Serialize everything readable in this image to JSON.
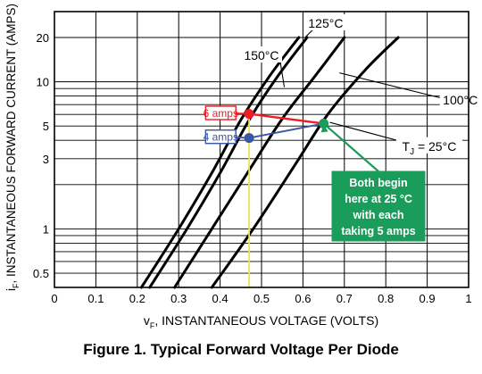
{
  "chart_data": {
    "type": "line",
    "title": "Figure 1. Typical Forward Voltage Per Diode",
    "ylabel": {
      "symbol": "i",
      "sub": "F",
      "text": ", INSTANTANEOUS FORWARD CURRENT (AMPS)"
    },
    "xlabel": {
      "symbol": "v",
      "sub": "F",
      "text": ", INSTANTANEOUS VOLTAGE (VOLTS)"
    },
    "xlim": [
      0,
      1.0
    ],
    "ylim": [
      0.4,
      30
    ],
    "yscale": "log",
    "grid": true,
    "xticks": [
      0,
      0.1,
      0.2,
      0.3,
      0.4,
      0.5,
      0.6,
      0.7,
      0.8,
      0.9,
      1
    ],
    "xtick_labels": [
      "0",
      "0.1",
      "0.2",
      "0.3",
      "0.4",
      "0.5",
      "0.6",
      "0.7",
      "0.8",
      "0.9",
      "1"
    ],
    "yticks": [
      0.5,
      1,
      3,
      5,
      10,
      20
    ],
    "ytick_labels": [
      "0.5",
      "1",
      "3",
      "5",
      "10",
      "20"
    ],
    "series": [
      {
        "name": "150°C",
        "x": [
          0.21,
          0.3,
          0.38,
          0.45,
          0.52,
          0.59
        ],
        "y": [
          0.4,
          1,
          2.4,
          5.5,
          11,
          20
        ]
      },
      {
        "name": "125°C",
        "x": [
          0.23,
          0.32,
          0.4,
          0.47,
          0.54,
          0.61
        ],
        "y": [
          0.4,
          1,
          2.4,
          5.5,
          11,
          20
        ]
      },
      {
        "name": "100°C",
        "x": [
          0.29,
          0.38,
          0.47,
          0.55,
          0.63,
          0.7
        ],
        "y": [
          0.4,
          1,
          2.5,
          5.6,
          11,
          20
        ]
      },
      {
        "name": "T_J = 25°C",
        "x": [
          0.38,
          0.48,
          0.58,
          0.66,
          0.75,
          0.83
        ],
        "y": [
          0.4,
          1,
          2.7,
          6,
          12,
          20
        ]
      }
    ],
    "curve_labels": [
      {
        "text": "125°C",
        "x": 0.655,
        "y": 24,
        "anchor_x": 0.605,
        "anchor_y": 20
      },
      {
        "text": "150°C",
        "x": 0.5,
        "y": 14.5,
        "anchor_x": 0.555,
        "anchor_y": 9.2
      },
      {
        "text": "100°C",
        "x": 0.98,
        "y": 7.2,
        "anchor_x": 0.688,
        "anchor_y": 11.5
      },
      {
        "text": "T",
        "sub": "J",
        "rest": " = 25°C",
        "x": 0.905,
        "y": 3.5,
        "anchor_x": 0.665,
        "anchor_y": 5.3
      }
    ],
    "annotations": [
      {
        "text": "6 amps",
        "box_x": [
          0.365,
          0.438
        ],
        "box_y": 6.1,
        "point_x": 0.47,
        "point_y": 6.05,
        "color": "#ee1c24"
      },
      {
        "text": "4 amps",
        "box_x": [
          0.365,
          0.438
        ],
        "box_y": 4.2,
        "point_x": 0.47,
        "point_y": 4.15,
        "color": "#3a56a5"
      },
      {
        "text": "",
        "point_x": 0.65,
        "point_y": 5.2,
        "color": "#1a9c5b"
      }
    ],
    "callout": {
      "lines": [
        "Both begin",
        "here at 25 °C",
        "with each",
        "taking 5 amps"
      ],
      "color": "#1a9c5b"
    },
    "colors": {
      "curve": "#000000",
      "grid": "#000000",
      "red": "#ee1c24",
      "blue": "#3a56a5",
      "green": "#1a9c5b",
      "vline": "#f5e04a"
    }
  }
}
